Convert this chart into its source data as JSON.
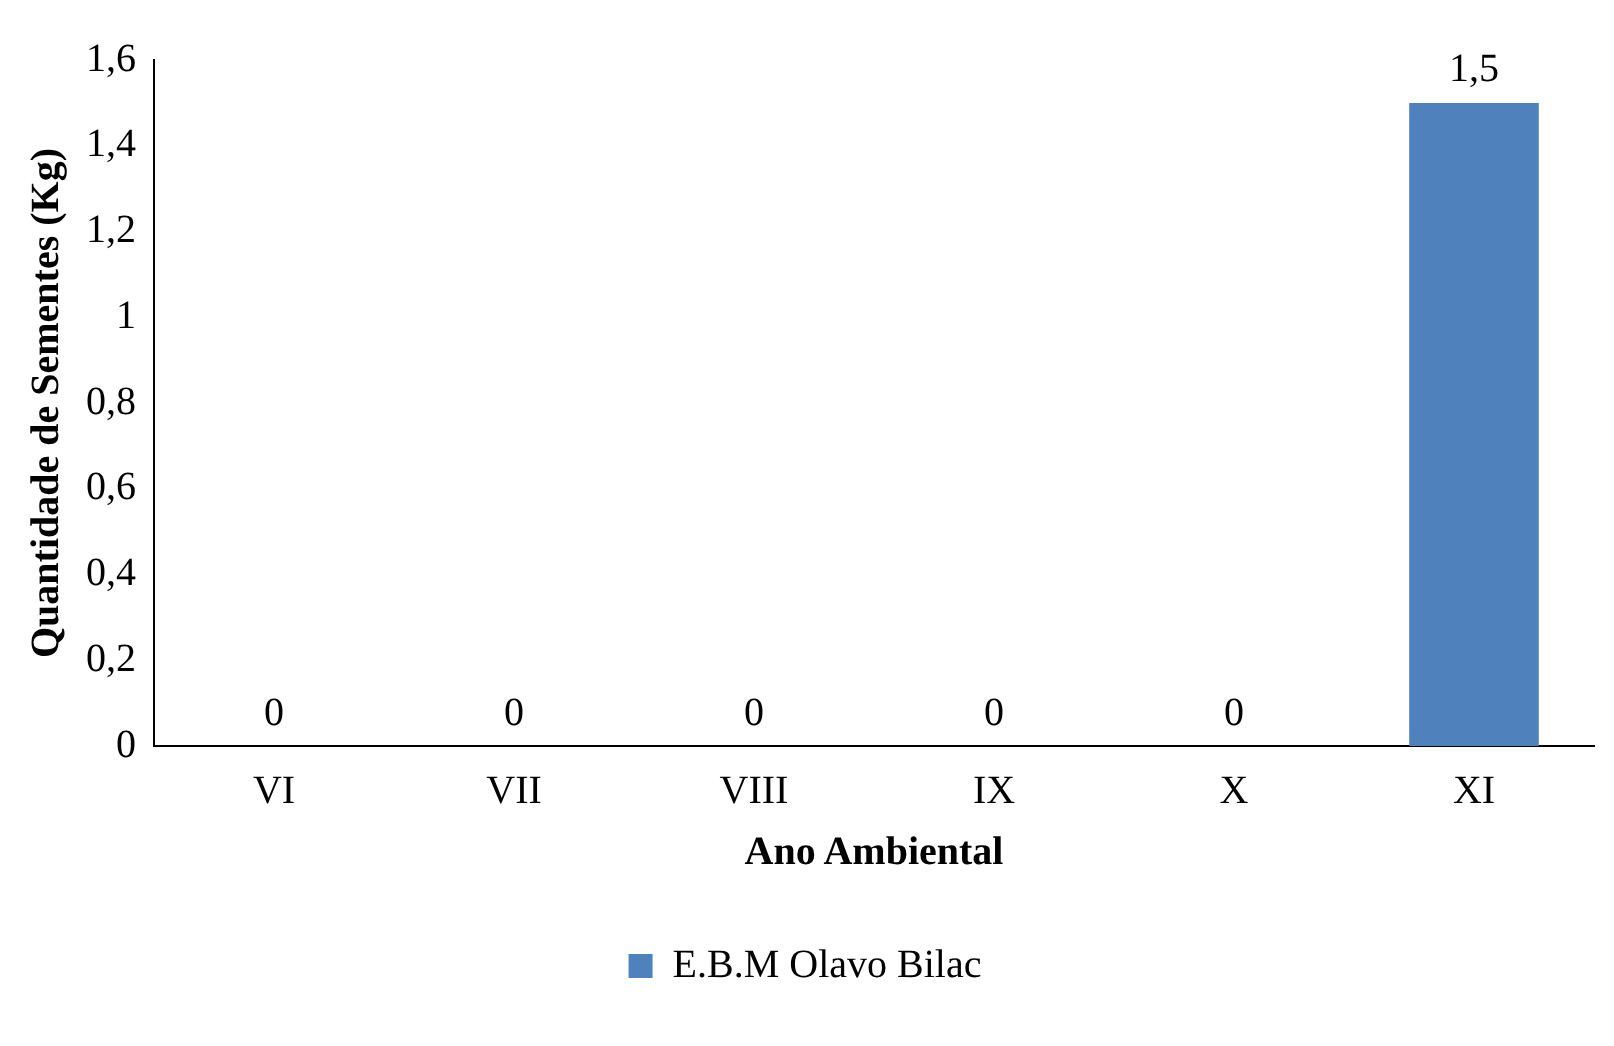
{
  "chart_data": {
    "type": "bar",
    "xlabel": "Ano Ambiental",
    "ylabel": "Quantidade de Sementes (Kg)",
    "categories": [
      "VI",
      "VII",
      "VIII",
      "IX",
      "X",
      "XI"
    ],
    "series": [
      {
        "name": "E.B.M Olavo Bilac",
        "color": "#4f81bd",
        "values": [
          0,
          0,
          0,
          0,
          0,
          1.5
        ],
        "value_labels": [
          "0",
          "0",
          "0",
          "0",
          "0",
          "1,5"
        ]
      }
    ],
    "ylim": [
      0,
      1.6
    ],
    "yticks": [
      0,
      {
        "value": 0.2,
        "label": "0,2"
      },
      {
        "value": 0.4,
        "label": "0,4"
      },
      {
        "value": 0.6,
        "label": "0,6"
      },
      {
        "value": 0.8,
        "label": "0,8"
      },
      1,
      {
        "value": 1.2,
        "label": "1,2"
      },
      {
        "value": 1.4,
        "label": "1,4"
      },
      {
        "value": 1.6,
        "label": "1,6"
      }
    ],
    "grid": false,
    "legend": "bottom"
  }
}
